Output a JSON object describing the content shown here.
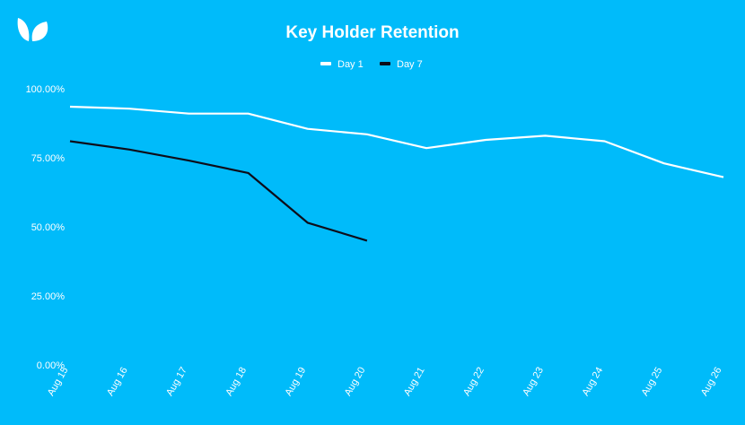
{
  "colors": {
    "background": "#00bbfa",
    "day1": "#ffffff",
    "day7": "#0d0d1a",
    "text": "#ffffff"
  },
  "logo": {
    "icon": "leaf-logo-icon"
  },
  "chart_data": {
    "type": "line",
    "title": "Key Holder Retention",
    "xlabel": "",
    "ylabel": "",
    "categories": [
      "Aug 15",
      "Aug 16",
      "Aug 17",
      "Aug 18",
      "Aug 19",
      "Aug 20",
      "Aug 21",
      "Aug 22",
      "Aug 23",
      "Aug 24",
      "Aug 25",
      "Aug 26"
    ],
    "y_ticks": [
      "0.00%",
      "25.00%",
      "50.00%",
      "75.00%",
      "100.00%"
    ],
    "ylim": [
      0,
      100
    ],
    "grid": false,
    "legend_position": "top-center",
    "series": [
      {
        "name": "Day 1",
        "color": "#ffffff",
        "values": [
          93.5,
          92.8,
          91.0,
          91.0,
          85.5,
          83.5,
          78.5,
          81.5,
          83.0,
          81.0,
          73.0,
          68.0
        ]
      },
      {
        "name": "Day 7",
        "color": "#0d0d1a",
        "values": [
          81.0,
          78.0,
          74.0,
          69.5,
          51.5,
          45.0,
          null,
          null,
          null,
          null,
          null,
          null
        ]
      }
    ]
  }
}
